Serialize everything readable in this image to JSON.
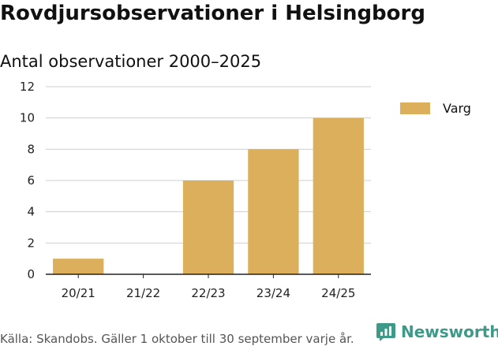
{
  "title": "Rovdjursobservationer i Helsingborg",
  "chart_data": {
    "type": "bar",
    "title": "Antal observationer 2000–2025",
    "categories": [
      "20/21",
      "21/22",
      "22/23",
      "23/24",
      "24/25"
    ],
    "series": [
      {
        "name": "Varg",
        "values": [
          1,
          0,
          6,
          8,
          10
        ],
        "color": "#dbaf5c"
      }
    ],
    "ylim": [
      0,
      12
    ],
    "yticks": [
      0,
      2,
      4,
      6,
      8,
      10,
      12
    ],
    "xlabel": "",
    "ylabel": "",
    "legend_position": "right"
  },
  "footer": {
    "source": "Källa: Skandobs. Gäller 1 oktober till 30 september varje år.",
    "brand": "Newsworthy"
  }
}
